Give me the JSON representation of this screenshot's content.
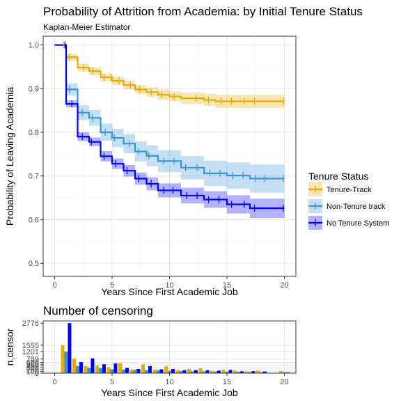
{
  "chart_data": [
    {
      "type": "line",
      "step": true,
      "title": "Probability of Attrition from Academia: by Initial Tenure Status",
      "subtitle": "Kaplan-Meier Estimator",
      "xlabel": "Years Since First Academic Job",
      "ylabel": "Probability of Leaving Academia",
      "xlim": [
        -1,
        21
      ],
      "ylim": [
        0.47,
        1.02
      ],
      "x_ticks": [
        0,
        5,
        10,
        15,
        20
      ],
      "y_ticks": [
        0.5,
        0.6,
        0.7,
        0.8,
        0.9,
        1.0
      ],
      "y_tick_labels": [
        "0.5",
        "0.6",
        "0.7",
        "0.8",
        "0.9",
        "1.0"
      ],
      "grid": true,
      "legend": {
        "title": "Tenure Status",
        "position": "right"
      },
      "series": [
        {
          "name": "Tenure-Track",
          "color": "#E6AB02",
          "times": [
            0,
            1,
            2,
            3,
            4,
            5,
            6,
            7,
            8,
            9,
            10,
            11,
            13,
            14,
            20
          ],
          "values": [
            1.0,
            0.972,
            0.948,
            0.94,
            0.926,
            0.918,
            0.908,
            0.898,
            0.892,
            0.886,
            0.882,
            0.878,
            0.874,
            0.871,
            0.871
          ],
          "upper": [
            1.0,
            0.98,
            0.957,
            0.949,
            0.935,
            0.928,
            0.918,
            0.908,
            0.903,
            0.898,
            0.894,
            0.891,
            0.888,
            0.886,
            0.886
          ],
          "lower": [
            1.0,
            0.964,
            0.939,
            0.931,
            0.917,
            0.908,
            0.898,
            0.888,
            0.881,
            0.874,
            0.87,
            0.865,
            0.86,
            0.856,
            0.856
          ],
          "censor_x": [
            0.8,
            1.3,
            2.5,
            3.3,
            4.3,
            4.9,
            5.6,
            6.6,
            7.4,
            8.4,
            9.3,
            10.4,
            12.3,
            13.4,
            14.5,
            15.4,
            16.5,
            17.4,
            19.9
          ]
        },
        {
          "name": "Non-Tenure track",
          "color": "#3A95D8",
          "times": [
            0,
            1,
            2,
            3,
            4,
            5,
            6,
            7,
            8,
            9,
            11,
            13,
            15,
            17,
            20
          ],
          "values": [
            1.0,
            0.898,
            0.845,
            0.833,
            0.8,
            0.787,
            0.774,
            0.756,
            0.746,
            0.734,
            0.719,
            0.706,
            0.701,
            0.694,
            0.694
          ],
          "upper": [
            1.0,
            0.912,
            0.862,
            0.851,
            0.82,
            0.808,
            0.796,
            0.779,
            0.77,
            0.759,
            0.746,
            0.735,
            0.731,
            0.726,
            0.726
          ],
          "lower": [
            1.0,
            0.884,
            0.828,
            0.815,
            0.78,
            0.766,
            0.752,
            0.733,
            0.722,
            0.709,
            0.692,
            0.677,
            0.671,
            0.662,
            0.662
          ],
          "censor_x": [
            1.3,
            2.4,
            3.3,
            4.4,
            5.2,
            6.5,
            7.3,
            8.2,
            9.5,
            10.4,
            11.4,
            12.4,
            13.5,
            14.4,
            15.5,
            16.4,
            17.5,
            18.3,
            19.9
          ]
        },
        {
          "name": "No Tenure System",
          "color": "#0000FF",
          "times": [
            0,
            1,
            2,
            3,
            4,
            5,
            6,
            7,
            8,
            9,
            11,
            13,
            15,
            17,
            20
          ],
          "values": [
            1.0,
            0.865,
            0.79,
            0.778,
            0.745,
            0.728,
            0.712,
            0.694,
            0.682,
            0.667,
            0.655,
            0.646,
            0.635,
            0.626,
            0.626
          ],
          "upper": [
            1.0,
            0.873,
            0.8,
            0.788,
            0.757,
            0.74,
            0.725,
            0.708,
            0.697,
            0.683,
            0.673,
            0.665,
            0.656,
            0.648,
            0.648
          ],
          "lower": [
            1.0,
            0.857,
            0.78,
            0.768,
            0.733,
            0.716,
            0.699,
            0.68,
            0.667,
            0.651,
            0.637,
            0.627,
            0.614,
            0.604,
            0.604
          ],
          "censor_x": [
            0.9,
            1.5,
            2.4,
            3.2,
            4.3,
            5.3,
            6.3,
            7.3,
            8.4,
            9.5,
            10.3,
            11.5,
            12.4,
            13.4,
            14.3,
            15.4,
            16.5,
            17.4,
            19.9
          ]
        }
      ]
    },
    {
      "type": "bar",
      "title": "Number of censoring",
      "xlabel": "Years Since First Academic Job",
      "ylabel": "n.censor",
      "xlim": [
        -1,
        21
      ],
      "ylim": [
        0,
        2900
      ],
      "x_ticks": [
        0,
        5,
        10,
        15,
        20
      ],
      "y_ticks": [
        0,
        100,
        200,
        300,
        400,
        500,
        600,
        789,
        1201,
        1555,
        2776
      ],
      "grid": true,
      "series": [
        {
          "name": "Tenure-Track",
          "color": "#E6AB02",
          "x": [
            0.7,
            1.7,
            2.7,
            3.7,
            4.7,
            5.7,
            6.7,
            7.7,
            8.7,
            9.7,
            10.7,
            11.7,
            12.7,
            13.7,
            14.7,
            15.7,
            16.7,
            17.7,
            19.7
          ],
          "values": [
            1555,
            789,
            390,
            420,
            330,
            560,
            200,
            480,
            180,
            380,
            150,
            240,
            270,
            130,
            180,
            140,
            110,
            140,
            120
          ]
        },
        {
          "name": "Non-Tenure track",
          "color": "#3A95D8",
          "x": [
            1.0,
            2.0,
            3.0,
            4.0,
            5.0,
            6.0,
            7.0,
            8.0,
            9.0,
            10.0,
            11.0,
            12.0,
            13.0,
            14.0,
            15.0,
            16.0,
            17.0,
            18.0,
            20.0
          ],
          "values": [
            1201,
            390,
            300,
            280,
            220,
            200,
            180,
            160,
            150,
            130,
            120,
            110,
            100,
            90,
            80,
            70,
            60,
            60,
            50
          ]
        },
        {
          "name": "No Tenure System",
          "color": "#0000FF",
          "x": [
            1.3,
            2.3,
            3.3,
            4.3,
            5.3,
            6.3,
            7.3,
            8.3,
            9.3,
            10.3,
            11.3,
            12.3,
            13.3,
            14.3,
            15.3,
            16.3,
            17.3,
            18.3,
            20.3
          ],
          "values": [
            2776,
            620,
            820,
            490,
            540,
            290,
            230,
            390,
            210,
            230,
            160,
            170,
            160,
            140,
            180,
            100,
            110,
            90,
            40
          ]
        }
      ]
    }
  ]
}
